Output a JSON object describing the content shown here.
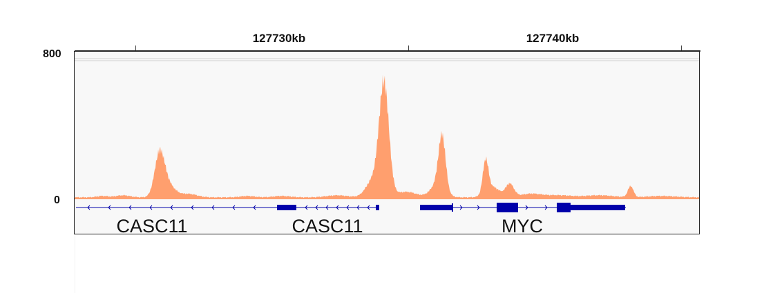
{
  "ruler": {
    "labels": [
      "127730kb",
      "127740kb"
    ]
  },
  "coverage_track": {
    "scale_max": "800",
    "scale_min": "0",
    "color": "#ff9f6e"
  },
  "gene_track": {
    "color": "#0000aa",
    "genes": [
      "CASC11",
      "CASC11",
      "MYC"
    ]
  }
}
